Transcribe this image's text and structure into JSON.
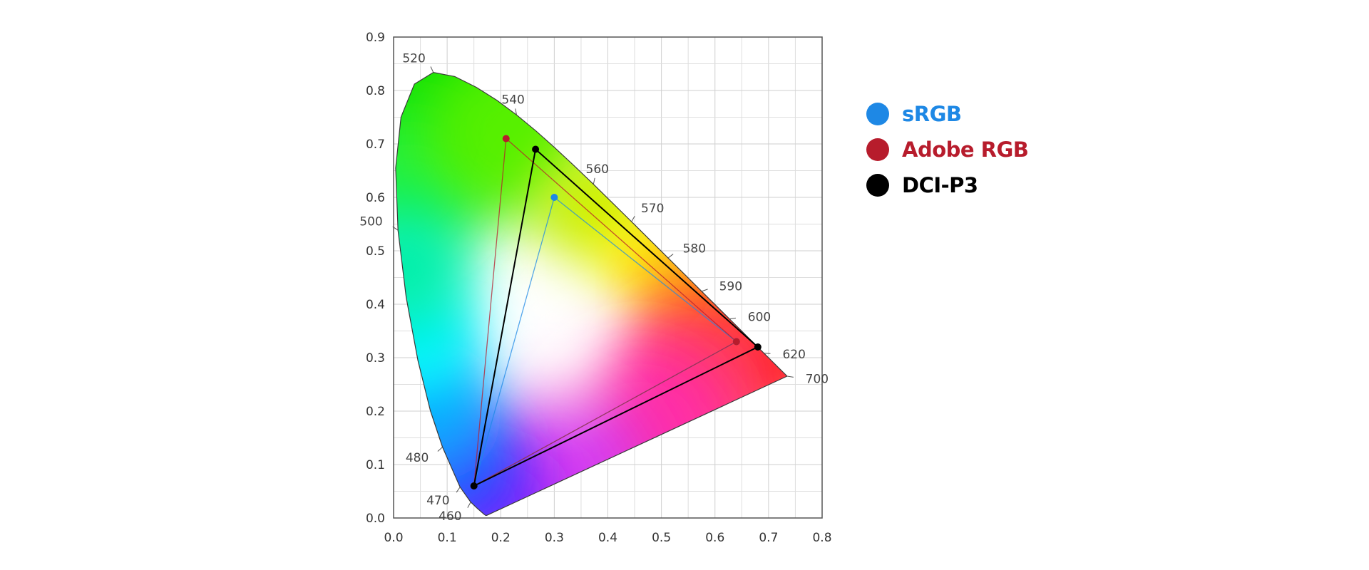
{
  "chart_data": {
    "type": "scatter",
    "title": "",
    "xlabel": "",
    "ylabel": "",
    "xlim": [
      0,
      0.8
    ],
    "ylim": [
      0,
      0.9
    ],
    "grid": true,
    "legend_position": "right",
    "x_ticks": [
      "0.0",
      "0.1",
      "0.2",
      "0.3",
      "0.4",
      "0.5",
      "0.6",
      "0.7",
      "0.8"
    ],
    "y_ticks": [
      "0.0",
      "0.1",
      "0.2",
      "0.3",
      "0.4",
      "0.5",
      "0.6",
      "0.7",
      "0.8",
      "0.9"
    ],
    "spectral_locus": [
      [
        0.1741,
        0.005
      ],
      [
        0.1738,
        0.0049
      ],
      [
        0.1733,
        0.0048
      ],
      [
        0.1726,
        0.0048
      ],
      [
        0.1714,
        0.0051
      ],
      [
        0.1689,
        0.0069
      ],
      [
        0.1644,
        0.0109
      ],
      [
        0.1566,
        0.0177
      ],
      [
        0.144,
        0.0297
      ],
      [
        0.1241,
        0.0578
      ],
      [
        0.0913,
        0.1327
      ],
      [
        0.0687,
        0.2007
      ],
      [
        0.0454,
        0.295
      ],
      [
        0.0235,
        0.4127
      ],
      [
        0.0082,
        0.5384
      ],
      [
        0.0039,
        0.6548
      ],
      [
        0.0139,
        0.7502
      ],
      [
        0.0389,
        0.812
      ],
      [
        0.0743,
        0.8338
      ],
      [
        0.1142,
        0.8262
      ],
      [
        0.1547,
        0.8059
      ],
      [
        0.1929,
        0.7816
      ],
      [
        0.2296,
        0.7543
      ],
      [
        0.2658,
        0.7243
      ],
      [
        0.3016,
        0.6923
      ],
      [
        0.3373,
        0.6589
      ],
      [
        0.3731,
        0.6245
      ],
      [
        0.4087,
        0.5896
      ],
      [
        0.4441,
        0.5547
      ],
      [
        0.4788,
        0.5202
      ],
      [
        0.5125,
        0.4866
      ],
      [
        0.5448,
        0.4544
      ],
      [
        0.5752,
        0.4242
      ],
      [
        0.6029,
        0.3965
      ],
      [
        0.627,
        0.3725
      ],
      [
        0.6482,
        0.3514
      ],
      [
        0.6658,
        0.334
      ],
      [
        0.6801,
        0.3197
      ],
      [
        0.6915,
        0.3083
      ],
      [
        0.7006,
        0.2993
      ],
      [
        0.7079,
        0.292
      ],
      [
        0.714,
        0.2859
      ],
      [
        0.719,
        0.2809
      ],
      [
        0.723,
        0.277
      ],
      [
        0.726,
        0.274
      ],
      [
        0.7347,
        0.2653
      ]
    ],
    "wavelength_labels": [
      {
        "label": "460",
        "x": 0.144,
        "y": 0.0297
      },
      {
        "label": "470",
        "x": 0.1241,
        "y": 0.0578
      },
      {
        "label": "480",
        "x": 0.0913,
        "y": 0.1327
      },
      {
        "label": "500",
        "x": 0.0082,
        "y": 0.5384
      },
      {
        "label": "520",
        "x": 0.0743,
        "y": 0.8338
      },
      {
        "label": "540",
        "x": 0.2296,
        "y": 0.7543
      },
      {
        "label": "560",
        "x": 0.3731,
        "y": 0.6245
      },
      {
        "label": "570",
        "x": 0.4441,
        "y": 0.5547
      },
      {
        "label": "580",
        "x": 0.5125,
        "y": 0.4866
      },
      {
        "label": "590",
        "x": 0.5752,
        "y": 0.4242
      },
      {
        "label": "600",
        "x": 0.627,
        "y": 0.3725
      },
      {
        "label": "620",
        "x": 0.6915,
        "y": 0.3083
      },
      {
        "label": "700",
        "x": 0.7347,
        "y": 0.2653
      }
    ],
    "series": [
      {
        "name": "sRGB",
        "color": "#1e88e5",
        "points": [
          [
            0.64,
            0.33
          ],
          [
            0.3,
            0.6
          ],
          [
            0.15,
            0.06
          ]
        ]
      },
      {
        "name": "Adobe RGB",
        "color": "#b71c2c",
        "points": [
          [
            0.64,
            0.33
          ],
          [
            0.21,
            0.71
          ],
          [
            0.15,
            0.06
          ]
        ]
      },
      {
        "name": "DCI-P3",
        "color": "#000000",
        "points": [
          [
            0.68,
            0.32
          ],
          [
            0.265,
            0.69
          ],
          [
            0.15,
            0.06
          ]
        ]
      }
    ]
  },
  "legend": {
    "items": [
      {
        "label": "sRGB",
        "color": "#1e88e5"
      },
      {
        "label": "Adobe RGB",
        "color": "#b71c2c"
      },
      {
        "label": "DCI-P3",
        "color": "#000000"
      }
    ]
  }
}
